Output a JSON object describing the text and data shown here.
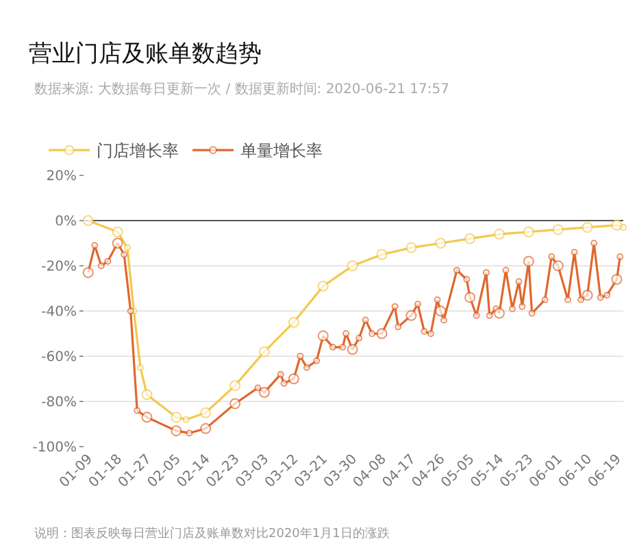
{
  "chart_data": {
    "type": "line",
    "title": "营业门店及账单数趋势",
    "subtitle": "数据来源: 大数据每日更新一次 / 数据更新时间: 2020-06-21 17:57",
    "annotations": [
      "说明：图表反映每日营业门店及账单数对比2020年1月1日的涨跌"
    ],
    "xlim": [
      "2020-01-08",
      "2020-06-21"
    ],
    "xticks": [
      {
        "value": "2020-01-09",
        "label": "01-09"
      },
      {
        "value": "2020-01-18",
        "label": "01-18"
      },
      {
        "value": "2020-01-27",
        "label": "01-27"
      },
      {
        "value": "2020-02-05",
        "label": "02-05"
      },
      {
        "value": "2020-02-14",
        "label": "02-14"
      },
      {
        "value": "2020-02-23",
        "label": "02-23"
      },
      {
        "value": "2020-03-03",
        "label": "03-03"
      },
      {
        "value": "2020-03-12",
        "label": "03-12"
      },
      {
        "value": "2020-03-21",
        "label": "03-21"
      },
      {
        "value": "2020-03-30",
        "label": "03-30"
      },
      {
        "value": "2020-04-08",
        "label": "04-08"
      },
      {
        "value": "2020-04-17",
        "label": "04-17"
      },
      {
        "value": "2020-04-26",
        "label": "04-26"
      },
      {
        "value": "2020-05-05",
        "label": "05-05"
      },
      {
        "value": "2020-05-14",
        "label": "05-14"
      },
      {
        "value": "2020-05-23",
        "label": "05-23"
      },
      {
        "value": "2020-06-01",
        "label": "06-01"
      },
      {
        "value": "2020-06-10",
        "label": "06-10"
      },
      {
        "value": "2020-06-19",
        "label": "06-19"
      }
    ],
    "ylim": [
      -100,
      20
    ],
    "yticks": [
      {
        "value": 20,
        "label": "20%"
      },
      {
        "value": 0,
        "label": "0%"
      },
      {
        "value": -20,
        "label": "-20%"
      },
      {
        "value": -40,
        "label": "-40%"
      },
      {
        "value": -60,
        "label": "-60%"
      },
      {
        "value": -80,
        "label": "-80%"
      },
      {
        "value": -100,
        "label": "-100%"
      }
    ],
    "grid": "y",
    "legend": "top left",
    "marker": "circle",
    "line_style": "solid",
    "series": [
      {
        "name": "门店增长率",
        "color": "#f2c94c",
        "x": [
          "2020-01-09",
          "2020-01-18",
          "2020-01-21",
          "2020-01-23",
          "2020-01-25",
          "2020-01-27",
          "2020-02-05",
          "2020-02-08",
          "2020-02-14",
          "2020-02-23",
          "2020-03-03",
          "2020-03-12",
          "2020-03-21",
          "2020-03-30",
          "2020-04-08",
          "2020-04-17",
          "2020-04-26",
          "2020-05-05",
          "2020-05-14",
          "2020-05-23",
          "2020-06-01",
          "2020-06-10",
          "2020-06-19",
          "2020-06-21"
        ],
        "values": [
          0,
          -5,
          -12,
          -40,
          -65,
          -77,
          -87,
          -88,
          -85,
          -73,
          -58,
          -45,
          -29,
          -20,
          -15,
          -12,
          -10,
          -8,
          -6,
          -5,
          -4,
          -3,
          -2,
          -3
        ]
      },
      {
        "name": "单量增长率",
        "color": "#e0672e",
        "x": [
          "2020-01-09",
          "2020-01-11",
          "2020-01-13",
          "2020-01-15",
          "2020-01-18",
          "2020-01-20",
          "2020-01-22",
          "2020-01-24",
          "2020-01-27",
          "2020-02-05",
          "2020-02-09",
          "2020-02-14",
          "2020-02-23",
          "2020-03-01",
          "2020-03-03",
          "2020-03-08",
          "2020-03-09",
          "2020-03-12",
          "2020-03-14",
          "2020-03-16",
          "2020-03-19",
          "2020-03-21",
          "2020-03-24",
          "2020-03-27",
          "2020-03-28",
          "2020-03-30",
          "2020-04-01",
          "2020-04-03",
          "2020-04-05",
          "2020-04-08",
          "2020-04-12",
          "2020-04-13",
          "2020-04-17",
          "2020-04-19",
          "2020-04-21",
          "2020-04-23",
          "2020-04-25",
          "2020-04-26",
          "2020-04-27",
          "2020-05-01",
          "2020-05-04",
          "2020-05-05",
          "2020-05-07",
          "2020-05-10",
          "2020-05-11",
          "2020-05-13",
          "2020-05-14",
          "2020-05-16",
          "2020-05-18",
          "2020-05-20",
          "2020-05-21",
          "2020-05-23",
          "2020-05-24",
          "2020-05-28",
          "2020-05-30",
          "2020-06-01",
          "2020-06-04",
          "2020-06-06",
          "2020-06-08",
          "2020-06-10",
          "2020-06-12",
          "2020-06-14",
          "2020-06-16",
          "2020-06-19",
          "2020-06-20"
        ],
        "values": [
          -23,
          -11,
          -20,
          -18,
          -10,
          -15,
          -40,
          -84,
          -87,
          -93,
          -94,
          -92,
          -81,
          -74,
          -76,
          -68,
          -72,
          -70,
          -60,
          -65,
          -62,
          -51,
          -56,
          -56,
          -50,
          -57,
          -52,
          -44,
          -50,
          -50,
          -38,
          -47,
          -42,
          -37,
          -49,
          -50,
          -35,
          -40,
          -44,
          -22,
          -26,
          -34,
          -42,
          -23,
          -42,
          -39,
          -41,
          -22,
          -39,
          -27,
          -38,
          -18,
          -41,
          -35,
          -16,
          -20,
          -35,
          -14,
          -35,
          -33,
          -10,
          -34,
          -33,
          -26,
          -16
        ]
      }
    ]
  }
}
